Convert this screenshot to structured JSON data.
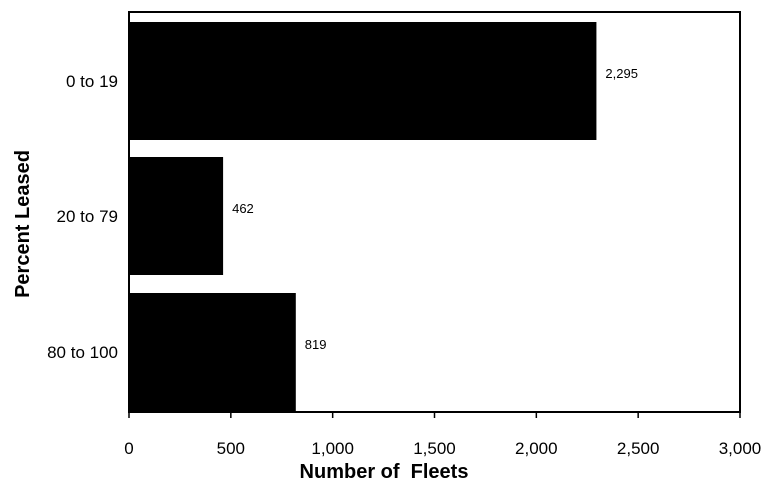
{
  "chart_data": {
    "type": "bar",
    "orientation": "horizontal",
    "categories": [
      "0 to 19",
      "20 to 79",
      "80 to 100"
    ],
    "values": [
      2295,
      462,
      819
    ],
    "value_labels": [
      "2,295",
      "462",
      "819"
    ],
    "xlabel": "Number of  Fleets",
    "ylabel": "Percent Leased",
    "xlim": [
      0,
      3000
    ],
    "x_ticks": [
      0,
      500,
      1000,
      1500,
      2000,
      2500,
      3000
    ],
    "x_tick_labels": [
      "0",
      "500",
      "1,000",
      "1,500",
      "2,000",
      "2,500",
      "3,000"
    ],
    "grid": false,
    "legend": "none",
    "bar_color": "#000000"
  }
}
